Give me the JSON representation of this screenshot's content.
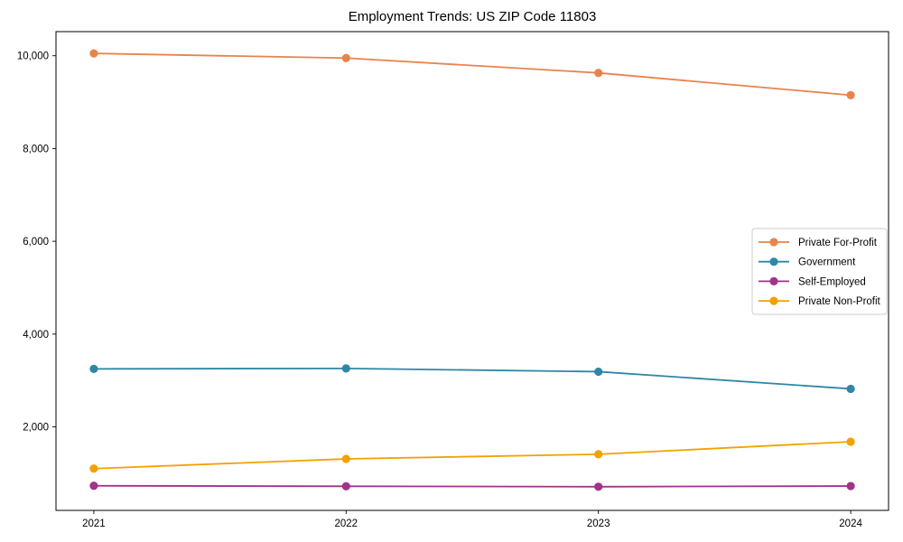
{
  "figure": {
    "background": "#ffffff",
    "frame_color": "#000000",
    "tick_color": "#000000",
    "label_color": "#000000"
  },
  "chart_data": {
    "type": "line",
    "title": "Employment Trends: US ZIP Code 11803",
    "xlabel": "",
    "ylabel": "",
    "x": [
      2021,
      2022,
      2023,
      2024
    ],
    "series": [
      {
        "name": "Private For-Profit",
        "color": "#e8834e",
        "values": [
          10050,
          9950,
          9630,
          9150
        ]
      },
      {
        "name": "Government",
        "color": "#2f87a6",
        "values": [
          3250,
          3260,
          3190,
          2820
        ]
      },
      {
        "name": "Self-Employed",
        "color": "#9e3588",
        "values": [
          730,
          720,
          710,
          725
        ]
      },
      {
        "name": "Private Non-Profit",
        "color": "#f2a104",
        "values": [
          1100,
          1310,
          1410,
          1680
        ]
      }
    ],
    "xticks": [
      "2021",
      "2022",
      "2023",
      "2024"
    ],
    "yticks": [
      2000,
      4000,
      6000,
      8000,
      10000
    ],
    "ytick_labels": [
      "2,000",
      "4,000",
      "6,000",
      "8,000",
      "10,000"
    ],
    "xlim": [
      2020.85,
      2024.15
    ],
    "ylim": [
      200,
      10520
    ],
    "grid": false,
    "marker": "circle",
    "legend": {
      "position": "center right",
      "border_color": "#cccccc",
      "background": "#ffffff",
      "entries": [
        "Private For-Profit",
        "Government",
        "Self-Employed",
        "Private Non-Profit"
      ]
    }
  }
}
